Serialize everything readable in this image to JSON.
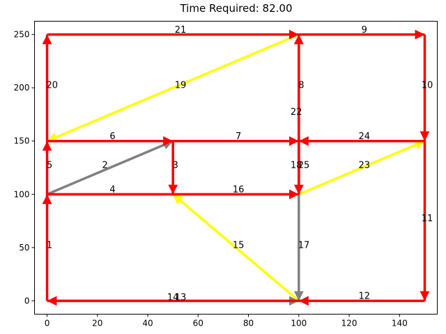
{
  "chart_data": {
    "type": "directed-graph",
    "title": "Time Required: 82.00",
    "xlim": [
      -5,
      155
    ],
    "ylim": [
      -12.5,
      262.5
    ],
    "xticks": [
      0,
      20,
      40,
      60,
      80,
      100,
      120,
      140
    ],
    "yticks": [
      0,
      50,
      100,
      150,
      200,
      250
    ],
    "grid": false,
    "colors": {
      "red": "#ff0000",
      "yellow": "#ffff00",
      "gray": "#808080"
    },
    "edges": [
      {
        "label": "1",
        "from": [
          0,
          0
        ],
        "to": [
          0,
          100
        ],
        "color": "red",
        "label_at": [
          1,
          52
        ]
      },
      {
        "label": "2",
        "from": [
          0,
          100
        ],
        "to": [
          50,
          150
        ],
        "color": "gray",
        "label_at": [
          23,
          127
        ]
      },
      {
        "label": "3",
        "from": [
          50,
          150
        ],
        "to": [
          50,
          100
        ],
        "color": "red",
        "label_at": [
          51,
          127
        ]
      },
      {
        "label": "4",
        "from": [
          0,
          100
        ],
        "to": [
          100,
          100
        ],
        "color": "red",
        "label_at": [
          26,
          104
        ]
      },
      {
        "label": "5",
        "from": [
          0,
          100
        ],
        "to": [
          0,
          150
        ],
        "color": "red",
        "label_at": [
          1,
          127
        ]
      },
      {
        "label": "6",
        "from": [
          0,
          150
        ],
        "to": [
          50,
          150
        ],
        "color": "red",
        "label_at": [
          26,
          154
        ]
      },
      {
        "label": "7",
        "from": [
          50,
          150
        ],
        "to": [
          100,
          150
        ],
        "color": "red",
        "label_at": [
          76,
          154
        ]
      },
      {
        "label": "8",
        "from": [
          100,
          150
        ],
        "to": [
          100,
          250
        ],
        "color": "gray",
        "label_at": [
          101,
          202
        ]
      },
      {
        "label": "9",
        "from": [
          100,
          250
        ],
        "to": [
          150,
          250
        ],
        "color": "red",
        "label_at": [
          126,
          254
        ]
      },
      {
        "label": "10",
        "from": [
          150,
          250
        ],
        "to": [
          150,
          150
        ],
        "color": "red",
        "label_at": [
          151,
          202
        ]
      },
      {
        "label": "11",
        "from": [
          150,
          150
        ],
        "to": [
          150,
          0
        ],
        "color": "red",
        "label_at": [
          151,
          77
        ]
      },
      {
        "label": "12",
        "from": [
          150,
          0
        ],
        "to": [
          100,
          0
        ],
        "color": "red",
        "label_at": [
          126,
          4
        ]
      },
      {
        "label": "13",
        "from": [
          0,
          0
        ],
        "to": [
          100,
          0
        ],
        "color": "gray",
        "label_at": [
          53,
          3
        ]
      },
      {
        "label": "14",
        "from": [
          100,
          0
        ],
        "to": [
          0,
          0
        ],
        "color": "red",
        "label_at": [
          50,
          3
        ]
      },
      {
        "label": "15",
        "from": [
          100,
          0
        ],
        "to": [
          50,
          100
        ],
        "color": "yellow",
        "label_at": [
          76,
          52
        ]
      },
      {
        "label": "16",
        "from": [
          50,
          100
        ],
        "to": [
          100,
          100
        ],
        "color": "red",
        "label_at": [
          76,
          104
        ]
      },
      {
        "label": "17",
        "from": [
          100,
          100
        ],
        "to": [
          100,
          0
        ],
        "color": "gray",
        "label_at": [
          102,
          52
        ]
      },
      {
        "label": "18",
        "from": [
          100,
          150
        ],
        "to": [
          100,
          100
        ],
        "color": "gray",
        "label_at": [
          99,
          127
        ]
      },
      {
        "label": "19",
        "from": [
          100,
          250
        ],
        "to": [
          0,
          150
        ],
        "color": "yellow",
        "label_at": [
          53,
          202
        ]
      },
      {
        "label": "20",
        "from": [
          0,
          150
        ],
        "to": [
          0,
          250
        ],
        "color": "red",
        "label_at": [
          2,
          202
        ]
      },
      {
        "label": "21",
        "from": [
          0,
          250
        ],
        "to": [
          100,
          250
        ],
        "color": "red",
        "label_at": [
          53,
          254
        ]
      },
      {
        "label": "22",
        "from": [
          100,
          100
        ],
        "to": [
          100,
          250
        ],
        "color": "red",
        "label_at": [
          99,
          177
        ]
      },
      {
        "label": "23",
        "from": [
          100,
          100
        ],
        "to": [
          150,
          150
        ],
        "color": "yellow",
        "label_at": [
          126,
          127
        ]
      },
      {
        "label": "24",
        "from": [
          150,
          150
        ],
        "to": [
          100,
          150
        ],
        "color": "red",
        "label_at": [
          126,
          154
        ]
      },
      {
        "label": "25",
        "from": [
          100,
          150
        ],
        "to": [
          100,
          100
        ],
        "color": "red",
        "label_at": [
          102,
          127
        ]
      }
    ]
  }
}
